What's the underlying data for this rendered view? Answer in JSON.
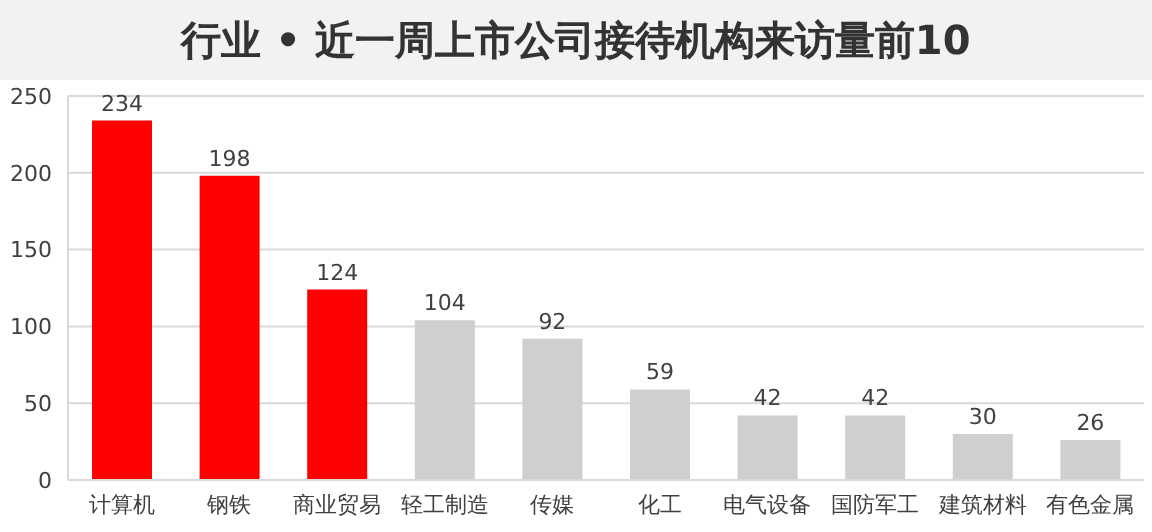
{
  "chart_data": {
    "type": "bar",
    "title": "行业 • 近一周上市公司接待机构来访量前10",
    "categories": [
      "计算机",
      "钢铁",
      "商业贸易",
      "轻工制造",
      "传媒",
      "化工",
      "电气设备",
      "国防军工",
      "建筑材料",
      "有色金属"
    ],
    "values": [
      234,
      198,
      124,
      104,
      92,
      59,
      42,
      42,
      30,
      26
    ],
    "colors": [
      "#ff0000",
      "#ff0000",
      "#ff0000",
      "#d0cece",
      "#d0cece",
      "#d0cece",
      "#d0cece",
      "#d0cece",
      "#d0cece",
      "#d0cece"
    ],
    "ylim": [
      0,
      250
    ],
    "yticks": [
      0,
      50,
      100,
      150,
      200,
      250
    ],
    "grid": "y",
    "data_labels": true
  }
}
